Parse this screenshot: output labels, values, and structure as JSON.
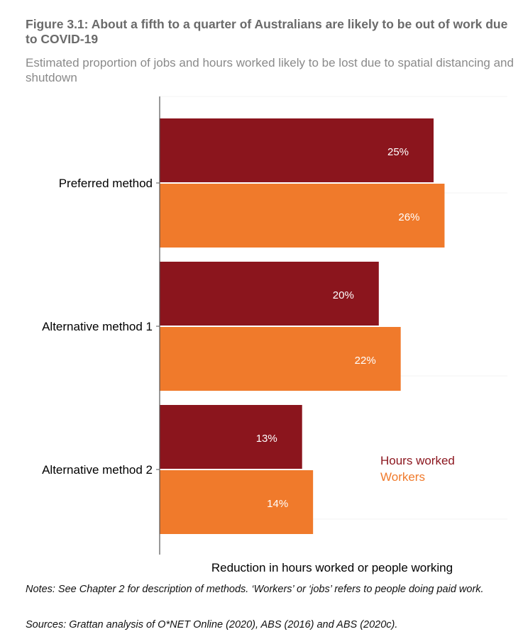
{
  "header": {
    "title": "Figure 3.1: About a fifth to a quarter of Australians are likely to be out of work due to COVID-19",
    "subtitle": "Estimated proportion of jobs and hours worked likely to be lost due to spatial distancing and shutdown"
  },
  "footer": {
    "notes": "Notes: See Chapter 2 for description of methods. ‘Workers’ or ‘jobs’ refers to people doing paid work.",
    "sources": "Sources: Grattan analysis of O*NET Online (2020), ABS (2016) and ABS (2020c)."
  },
  "colors": {
    "hours_worked": "#8b151d",
    "workers": "#f07a2b",
    "axis": "#555555",
    "grid": "#f3f3f3"
  },
  "chart_data": {
    "type": "bar",
    "orientation": "horizontal",
    "categories": [
      "Preferred method",
      "Alternative method 1",
      "Alternative method 2"
    ],
    "series": [
      {
        "name": "Hours worked",
        "values": [
          25,
          20,
          13
        ],
        "labels": [
          "25%",
          "20%",
          "13%"
        ]
      },
      {
        "name": "Workers",
        "values": [
          26,
          22,
          14
        ],
        "labels": [
          "26%",
          "22%",
          "14%"
        ]
      }
    ],
    "xlabel": "Reduction in hours worked or people working",
    "ylabel": "",
    "xlim": [
      0,
      32
    ],
    "grid": true,
    "legend_placement": "lower-right"
  }
}
